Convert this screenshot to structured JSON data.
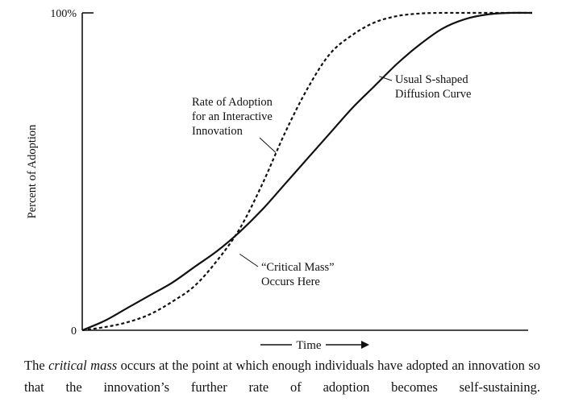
{
  "chart_data": {
    "type": "line",
    "title": "",
    "xlabel": "Time",
    "ylabel": "Percent of Adoption",
    "xlim": [
      0,
      100
    ],
    "ylim": [
      0,
      100
    ],
    "y_tick_labels": [
      "0",
      "100%"
    ],
    "grid": false,
    "series": [
      {
        "name": "Usual S-shaped Diffusion Curve",
        "style": "solid",
        "x": [
          0,
          5,
          10,
          15,
          20,
          25,
          30,
          35,
          40,
          45,
          50,
          55,
          60,
          65,
          70,
          75,
          80,
          85,
          90,
          95,
          100
        ],
        "y": [
          0,
          3,
          7,
          11,
          15,
          20,
          25,
          31,
          38,
          46,
          54,
          62,
          70,
          77,
          84,
          90,
          95,
          98,
          99.5,
          100,
          100
        ]
      },
      {
        "name": "Rate of Adoption for an Interactive Innovation",
        "style": "dashed",
        "x": [
          0,
          5,
          10,
          15,
          20,
          25,
          30,
          35,
          40,
          45,
          50,
          55,
          60,
          65,
          70,
          75,
          80,
          85,
          90,
          95,
          100
        ],
        "y": [
          0,
          1,
          2.5,
          5,
          9,
          14,
          22,
          32,
          46,
          62,
          76,
          87,
          93,
          97,
          99,
          99.8,
          100,
          100,
          100,
          100,
          100
        ]
      }
    ],
    "annotations": [
      {
        "id": "interactive",
        "lines": [
          "Rate of Adoption",
          "for an Interactive",
          "Innovation"
        ],
        "points_to": {
          "x": 43,
          "y": 56
        }
      },
      {
        "id": "s-curve",
        "lines": [
          "Usual S-shaped",
          "Diffusion Curve"
        ],
        "points_to": {
          "x": 66,
          "y": 80
        }
      },
      {
        "id": "critical-mass",
        "lines": [
          "“Critical Mass”",
          "Occurs Here"
        ],
        "points_to": {
          "x": 35,
          "y": 24
        }
      }
    ]
  },
  "caption": {
    "before": "The ",
    "emphasis": "critical mass",
    "after": " occurs at the point at which enough individuals have adopted an innovation so that the innovation’s further rate of adoption becomes self-sustaining."
  }
}
